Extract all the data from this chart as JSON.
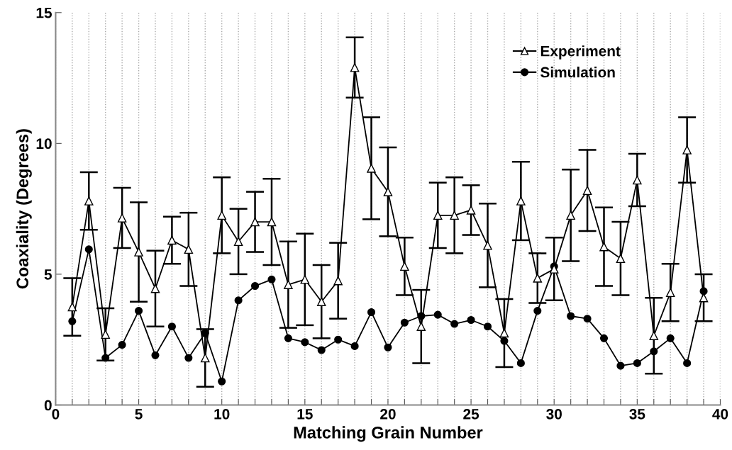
{
  "chart_data": {
    "type": "line",
    "xlabel": "Matching Grain Number",
    "ylabel": "Coaxiality (Degrees)",
    "x": [
      1,
      2,
      3,
      4,
      5,
      6,
      7,
      8,
      9,
      10,
      11,
      12,
      13,
      14,
      15,
      16,
      17,
      18,
      19,
      20,
      21,
      22,
      23,
      24,
      25,
      26,
      27,
      28,
      29,
      30,
      31,
      32,
      33,
      34,
      35,
      36,
      37,
      38,
      39
    ],
    "series": [
      {
        "name": "Experiment",
        "color": "#000000",
        "marker": "triangle",
        "values": [
          3.75,
          7.8,
          2.7,
          7.15,
          5.85,
          4.45,
          6.3,
          5.95,
          1.8,
          7.25,
          6.25,
          7.0,
          7.0,
          4.6,
          4.8,
          3.95,
          4.75,
          12.9,
          9.05,
          8.15,
          5.3,
          3.0,
          7.25,
          7.25,
          7.45,
          6.1,
          2.75,
          7.8,
          4.85,
          5.2,
          7.25,
          8.2,
          6.05,
          5.6,
          8.6,
          2.65,
          4.3,
          9.75,
          4.1
        ],
        "errors": [
          1.1,
          1.1,
          1.0,
          1.15,
          1.9,
          1.45,
          0.9,
          1.4,
          1.1,
          1.45,
          1.25,
          1.15,
          1.65,
          1.65,
          1.75,
          1.4,
          1.45,
          1.15,
          1.95,
          1.7,
          1.1,
          1.4,
          1.25,
          1.45,
          0.95,
          1.6,
          1.3,
          1.5,
          0.95,
          1.2,
          1.75,
          1.55,
          1.5,
          1.4,
          1.0,
          1.45,
          1.1,
          1.25,
          0.9
        ]
      },
      {
        "name": "Simulation",
        "color": "#000000",
        "marker": "circle",
        "values": [
          3.2,
          5.95,
          1.8,
          2.3,
          3.6,
          1.9,
          3.0,
          1.8,
          2.75,
          0.9,
          4.0,
          4.55,
          4.8,
          2.55,
          2.4,
          2.1,
          2.5,
          2.25,
          3.55,
          2.2,
          3.15,
          3.4,
          3.45,
          3.1,
          3.25,
          3.0,
          2.45,
          1.6,
          3.6,
          5.3,
          3.4,
          3.3,
          2.55,
          1.5,
          1.6,
          2.05,
          2.55,
          1.6,
          4.35
        ]
      }
    ],
    "xlim": [
      0,
      40
    ],
    "xticks": [
      0,
      {
        "value": 1,
        "label": null
      },
      {
        "value": 2,
        "label": null
      },
      {
        "value": 3,
        "label": null
      },
      {
        "value": 4,
        "label": null
      },
      5,
      {
        "value": 6,
        "label": null
      },
      {
        "value": 7,
        "label": null
      },
      {
        "value": 8,
        "label": null
      },
      {
        "value": 9,
        "label": null
      },
      10,
      {
        "value": 11,
        "label": null
      },
      {
        "value": 12,
        "label": null
      },
      {
        "value": 13,
        "label": null
      },
      {
        "value": 14,
        "label": null
      },
      15,
      {
        "value": 16,
        "label": null
      },
      {
        "value": 17,
        "label": null
      },
      {
        "value": 18,
        "label": null
      },
      {
        "value": 19,
        "label": null
      },
      20,
      {
        "value": 21,
        "label": null
      },
      {
        "value": 22,
        "label": null
      },
      {
        "value": 23,
        "label": null
      },
      {
        "value": 24,
        "label": null
      },
      25,
      {
        "value": 26,
        "label": null
      },
      {
        "value": 27,
        "label": null
      },
      {
        "value": 28,
        "label": null
      },
      {
        "value": 29,
        "label": null
      },
      30,
      {
        "value": 31,
        "label": null
      },
      {
        "value": 32,
        "label": null
      },
      {
        "value": 33,
        "label": null
      },
      {
        "value": 34,
        "label": null
      },
      35,
      {
        "value": 36,
        "label": null
      },
      {
        "value": 37,
        "label": null
      },
      {
        "value": 38,
        "label": null
      },
      {
        "value": 39,
        "label": null
      },
      40
    ],
    "ylim": [
      0,
      15
    ],
    "yticks": [
      0,
      5,
      10,
      15
    ],
    "grid": "x",
    "legend": "top right",
    "line_style": "solid"
  }
}
